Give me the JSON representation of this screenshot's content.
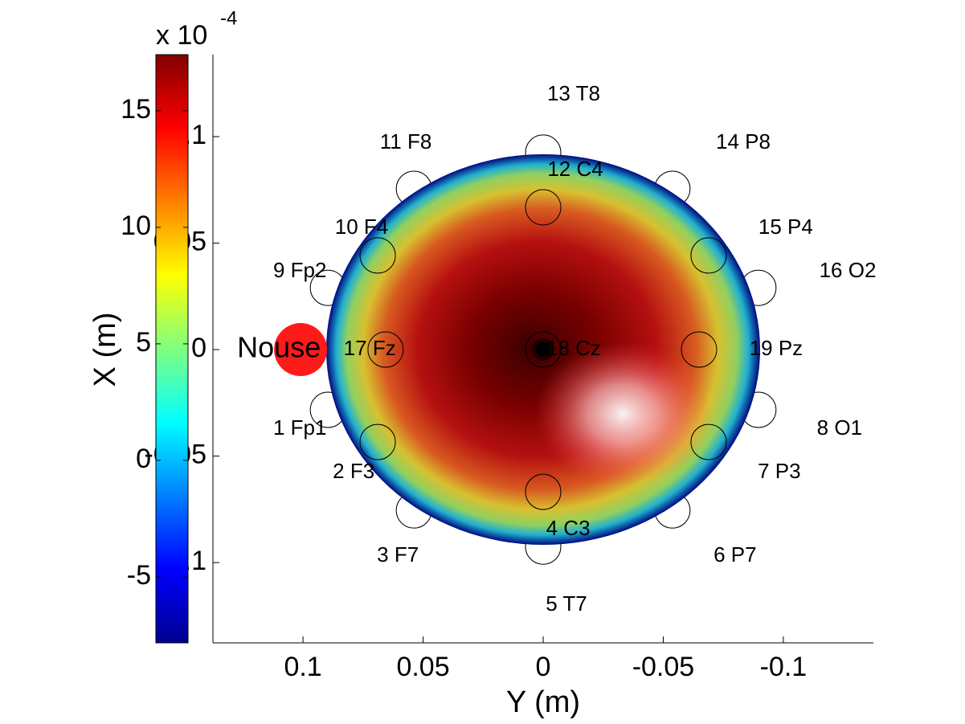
{
  "chart_data": {
    "type": "topoplot",
    "xlabel": "Y (m)",
    "ylabel": "X (m)",
    "xlim": [
      0.1375,
      -0.1375
    ],
    "ylim": [
      -0.1377,
      0.1385
    ],
    "xticks": [
      0.1,
      0.05,
      0,
      -0.05,
      -0.1
    ],
    "yticks": [
      -0.1,
      -0.05,
      0,
      0.05,
      0.1
    ],
    "electrodes": [
      {
        "label": "1 Fp1",
        "Y": 0.0896,
        "X": -0.0283,
        "label_Y": 0.1013,
        "label_X": -0.0374
      },
      {
        "label": "2 F3",
        "Y": 0.0689,
        "X": -0.0434,
        "label_Y": 0.0789,
        "label_X": -0.0577
      },
      {
        "label": "3 F7",
        "Y": 0.0538,
        "X": -0.0755,
        "label_Y": 0.0605,
        "label_X": -0.097
      },
      {
        "label": "4 C3",
        "Y": 0,
        "X": -0.0668,
        "label_Y": -0.0104,
        "label_X": -0.0845
      },
      {
        "label": "5 T7",
        "Y": 0,
        "X": -0.0925,
        "label_Y": -0.0097,
        "label_X": -0.12
      },
      {
        "label": "6 P7",
        "Y": -0.0538,
        "X": -0.0755,
        "label_Y": -0.0799,
        "label_X": -0.097
      },
      {
        "label": "7 P3",
        "Y": -0.0689,
        "X": -0.0434,
        "label_Y": -0.0983,
        "label_X": -0.0577
      },
      {
        "label": "8 O1",
        "Y": -0.0896,
        "X": -0.0283,
        "label_Y": -0.1234,
        "label_X": -0.0374
      },
      {
        "label": "9 Fp2",
        "Y": 0.0896,
        "X": 0.029,
        "label_Y": 0.1013,
        "label_X": 0.0366
      },
      {
        "label": "10 F4",
        "Y": 0.0689,
        "X": 0.0442,
        "label_Y": 0.0756,
        "label_X": 0.057
      },
      {
        "label": "11 F8",
        "Y": 0.0538,
        "X": 0.0755,
        "label_Y": 0.0572,
        "label_X": 0.097
      },
      {
        "label": "12 C4",
        "Y": 0,
        "X": 0.0668,
        "label_Y": -0.0134,
        "label_X": 0.0842
      },
      {
        "label": "13 T8",
        "Y": 0,
        "X": 0.0925,
        "label_Y": -0.0127,
        "label_X": 0.1196
      },
      {
        "label": "14 P8",
        "Y": -0.0538,
        "X": 0.0755,
        "label_Y": -0.0833,
        "label_X": 0.097
      },
      {
        "label": "15 P4",
        "Y": -0.0689,
        "X": 0.0442,
        "label_Y": -0.101,
        "label_X": 0.057
      },
      {
        "label": "16 O2",
        "Y": -0.0896,
        "X": 0.029,
        "label_Y": -0.1268,
        "label_X": 0.0366
      },
      {
        "label": "17 Fz",
        "Y": 0.0656,
        "X": 0,
        "label_Y": 0.0722,
        "label_X": 0
      },
      {
        "label": "18 Cz",
        "Y": 0,
        "X": 0,
        "label_Y": -0.0127,
        "label_X": 0
      },
      {
        "label": "19 Pz",
        "Y": -0.0649,
        "X": 0,
        "label_Y": -0.097,
        "label_X": 0
      }
    ],
    "nose": {
      "label": "Nouse",
      "Y": 0.101,
      "X": 0,
      "label_Y": 0.11,
      "label_X": 0,
      "color": "#ff1a1a"
    },
    "colorbar": {
      "exponent_base": "x 10",
      "exponent": "-4",
      "clim": [
        -7.83,
        17.41
      ],
      "ticks": [
        -5,
        0,
        5,
        10,
        15
      ]
    }
  }
}
